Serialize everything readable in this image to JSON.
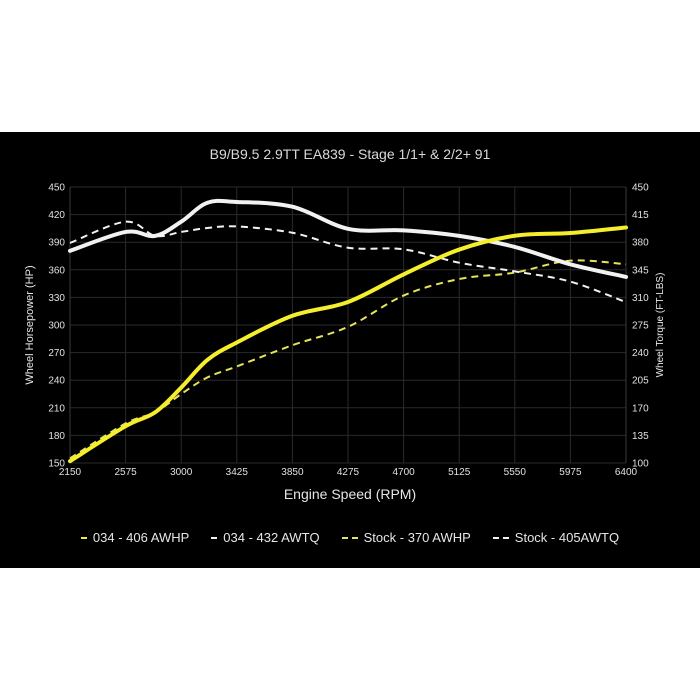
{
  "chart_data": {
    "type": "line",
    "title": "B9/B9.5 2.9TT EA839 - Stage 1/1+ & 2/2+ 91",
    "xlabel": "Engine Speed (RPM)",
    "ylabel": "Wheel Horsepower (HP)",
    "y2label": "Wheel Torque (FT-LBS)",
    "xlim": [
      2150,
      6400
    ],
    "ylim": [
      150,
      450
    ],
    "y2lim": [
      100,
      450
    ],
    "x_ticks": [
      2150,
      2575,
      3000,
      3425,
      3850,
      4275,
      4700,
      5125,
      5550,
      5975,
      6400
    ],
    "y_ticks": [
      150,
      180,
      210,
      240,
      270,
      300,
      330,
      360,
      390,
      420,
      450
    ],
    "y2_ticks": [
      100,
      135,
      170,
      205,
      240,
      275,
      310,
      345,
      380,
      415,
      450
    ],
    "grid": true,
    "legend_position": "bottom",
    "x": [
      2150,
      2575,
      2800,
      3000,
      3200,
      3425,
      3850,
      4275,
      4700,
      5125,
      5550,
      5975,
      6400
    ],
    "series": [
      {
        "name": "034 - 406 AWHP",
        "axis": "left",
        "style": "solid",
        "color": "#f5ee2c",
        "values": [
          152,
          190,
          205,
          232,
          262,
          281,
          310,
          325,
          355,
          382,
          397,
          400,
          406
        ]
      },
      {
        "name": "034 - 432 AWTQ",
        "axis": "right",
        "style": "solid",
        "color": "#f2f2f2",
        "values": [
          369,
          393,
          388,
          406,
          430,
          431,
          425,
          397,
          395,
          388,
          374,
          352,
          336
        ]
      },
      {
        "name": "Stock - 370 AWHP",
        "axis": "left",
        "style": "dashed",
        "color": "#e6e35a",
        "values": [
          155,
          193,
          205,
          225,
          243,
          255,
          278,
          298,
          332,
          350,
          357,
          370,
          366
        ]
      },
      {
        "name": "Stock - 405AWTQ",
        "axis": "right",
        "style": "dashed",
        "color": "#f2f2f2",
        "values": [
          379,
          406,
          388,
          393,
          398,
          400,
          392,
          373,
          371,
          354,
          343,
          330,
          304
        ]
      }
    ]
  },
  "legend": [
    {
      "label": "034 - 406 AWHP",
      "color": "#f5ee2c",
      "dashed": false
    },
    {
      "label": "034 - 432 AWTQ",
      "color": "#f2f2f2",
      "dashed": false
    },
    {
      "label": "Stock - 370 AWHP",
      "color": "#e6e35a",
      "dashed": true
    },
    {
      "label": "Stock - 405AWTQ",
      "color": "#f2f2f2",
      "dashed": true
    }
  ]
}
